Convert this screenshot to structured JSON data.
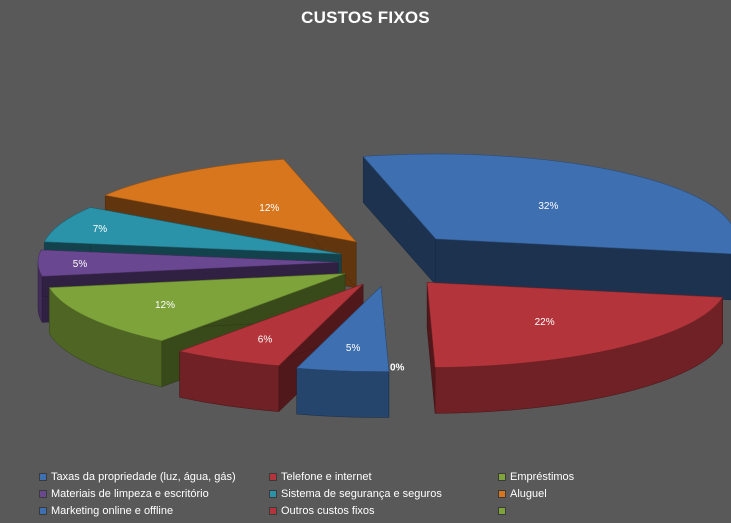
{
  "chart_data": {
    "type": "pie",
    "title": "CUSTOS FIXOS",
    "style": "3d-exploded",
    "legend_position": "bottom",
    "slices": [
      {
        "name": "Taxas da propriedade (luz, água, gás)",
        "value": 32,
        "label": "32%",
        "color": "#3e6fb0"
      },
      {
        "name": "Telefone e internet",
        "value": 22,
        "label": "22%",
        "color": "#b3353b"
      },
      {
        "name": "Empréstimos",
        "value": 0,
        "label": "0%",
        "color": "#7da33a"
      },
      {
        "name": "Materiais de limpeza e escritório",
        "value": 5,
        "label": "5%",
        "color": "#3e6fb0"
      },
      {
        "name": "Sistema de segurança e seguros",
        "value": 6,
        "label": "6%",
        "color": "#b3353b"
      },
      {
        "name": "Aluguel",
        "value": 12,
        "label": "12%",
        "color": "#7da33a"
      },
      {
        "name": "Marketing online e offline",
        "value": 5,
        "label": "5%",
        "color": "#6a4791"
      },
      {
        "name": "Outros custos fixos",
        "value": 7,
        "label": "7%",
        "color": "#2b93a9"
      },
      {
        "name": "",
        "value": 12,
        "label": "12%",
        "color": "#d8761e"
      }
    ],
    "legend": [
      {
        "label": "Taxas da propriedade (luz, água, gás)",
        "color": "#3e6fb0"
      },
      {
        "label": "Telefone e internet",
        "color": "#b3353b"
      },
      {
        "label": "Empréstimos",
        "color": "#7da33a"
      },
      {
        "label": "Materiais de limpeza e escritório",
        "color": "#6a4791"
      },
      {
        "label": "Sistema de segurança e seguros",
        "color": "#2b93a9"
      },
      {
        "label": "Aluguel",
        "color": "#d8761e"
      },
      {
        "label": "Marketing online e offline",
        "color": "#3e6fb0"
      },
      {
        "label": "Outros custos fixos",
        "color": "#b3353b"
      },
      {
        "label": "",
        "color": "#7da33a"
      }
    ]
  }
}
